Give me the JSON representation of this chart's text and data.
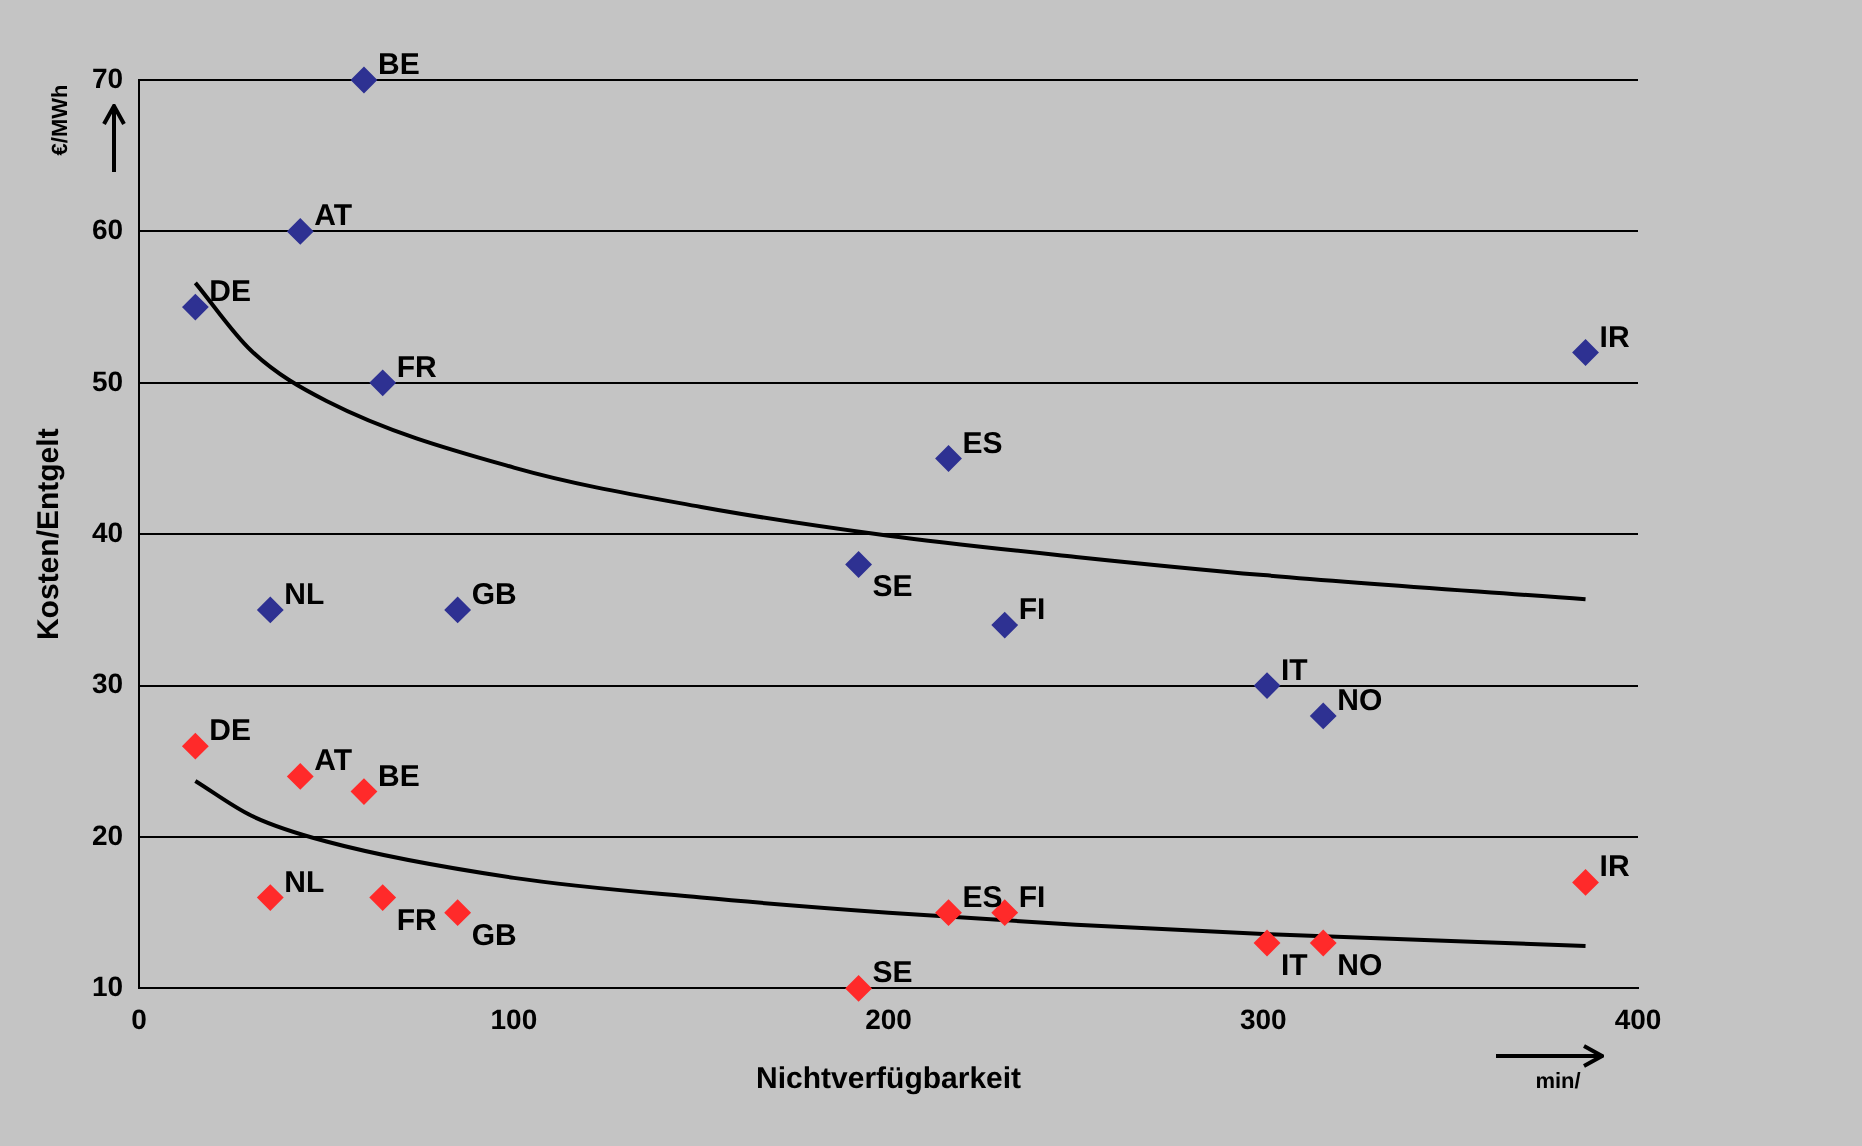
{
  "chart_data": {
    "type": "scatter",
    "xlabel": "Nichtverfügbarkeit",
    "ylabel": "Kosten/Entgelt",
    "annotations": [
      "€/MWh",
      "min/"
    ],
    "xlim": [
      0,
      400
    ],
    "xticks": [
      0,
      100,
      200,
      300,
      400
    ],
    "ylim": [
      10,
      70
    ],
    "yticks": [
      10,
      20,
      30,
      40,
      50,
      60,
      70
    ],
    "grid": "y",
    "legend": false,
    "marker": "diamond",
    "series": [
      {
        "color": "#2e3192",
        "x": [
          60,
          43,
          15,
          65,
          35,
          85,
          192,
          216,
          231,
          301,
          316,
          386
        ],
        "values": [
          70,
          60,
          55,
          50,
          35,
          35,
          38,
          45,
          34,
          30,
          28,
          52
        ],
        "value_labels": [
          "BE",
          "AT",
          "DE",
          "FR",
          "NL",
          "GB",
          "SE",
          "ES",
          "FI",
          "IT",
          "NO",
          "IR"
        ]
      },
      {
        "color": "#ff2a2a",
        "x": [
          15,
          43,
          60,
          35,
          65,
          85,
          192,
          216,
          231,
          301,
          316,
          386
        ],
        "values": [
          26,
          24,
          23,
          16,
          16,
          15,
          10,
          15,
          15,
          13,
          13,
          17
        ],
        "value_labels": [
          "DE",
          "AT",
          "BE",
          "NL",
          "FR",
          "GB",
          "SE",
          "ES",
          "FI",
          "IT",
          "NO",
          "IR"
        ]
      },
      {
        "type": "line",
        "color": "#000000",
        "marker": "none",
        "x": [
          15,
          30,
          50,
          100,
          150,
          200,
          250,
          300,
          386
        ],
        "values": [
          56.6,
          52.1,
          48.8,
          44.4,
          41.8,
          39.9,
          38.5,
          37.3,
          35.7
        ]
      },
      {
        "type": "line",
        "color": "#000000",
        "marker": "none",
        "x": [
          15,
          30,
          50,
          100,
          150,
          200,
          250,
          300,
          386
        ],
        "values": [
          23.7,
          21.4,
          19.7,
          17.3,
          16.0,
          15.0,
          14.2,
          13.6,
          12.8
        ]
      }
    ]
  }
}
